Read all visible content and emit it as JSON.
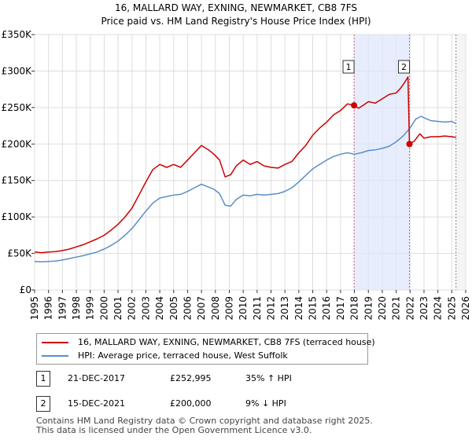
{
  "title_line1": "16, MALLARD WAY, EXNING, NEWMARKET, CB8 7FS",
  "title_line2": "Price paid vs. HM Land Registry's House Price Index (HPI)",
  "chart_data": {
    "type": "line",
    "title": "16, MALLARD WAY, EXNING, NEWMARKET, CB8 7FS — Price paid vs. HM Land Registry's House Price Index (HPI)",
    "xlim": [
      1995,
      2026
    ],
    "ylim": [
      0,
      350000
    ],
    "xticks": [
      1995,
      1996,
      1997,
      1998,
      1999,
      2000,
      2001,
      2002,
      2003,
      2004,
      2005,
      2006,
      2007,
      2008,
      2009,
      2010,
      2011,
      2012,
      2013,
      2014,
      2015,
      2016,
      2017,
      2018,
      2019,
      2020,
      2021,
      2022,
      2023,
      2024,
      2025,
      2026
    ],
    "yticks": [
      {
        "value": 0,
        "label": "£0"
      },
      {
        "value": 50000,
        "label": "£50K"
      },
      {
        "value": 100000,
        "label": "£100K"
      },
      {
        "value": 150000,
        "label": "£150K"
      },
      {
        "value": 200000,
        "label": "£200K"
      },
      {
        "value": 250000,
        "label": "£250K"
      },
      {
        "value": 300000,
        "label": "£300K"
      },
      {
        "value": 350000,
        "label": "£350K"
      }
    ],
    "grid": true,
    "series": [
      {
        "name": "16, MALLARD WAY, EXNING, NEWMARKET, CB8 7FS (terraced house)",
        "color": "#cc0000",
        "x": [
          1995.0,
          1995.5,
          1996.0,
          1996.5,
          1997.0,
          1997.5,
          1998.0,
          1998.5,
          1999.0,
          1999.5,
          2000.0,
          2000.5,
          2001.0,
          2001.5,
          2002.0,
          2002.5,
          2003.0,
          2003.5,
          2004.0,
          2004.5,
          2005.0,
          2005.5,
          2006.0,
          2006.5,
          2007.0,
          2007.5,
          2007.9,
          2008.3,
          2008.7,
          2009.1,
          2009.5,
          2010.0,
          2010.5,
          2011.0,
          2011.5,
          2012.0,
          2012.5,
          2013.0,
          2013.5,
          2014.0,
          2014.5,
          2015.0,
          2015.5,
          2016.0,
          2016.5,
          2017.0,
          2017.5,
          2017.97,
          2018.3,
          2018.7,
          2019.0,
          2019.5,
          2020.0,
          2020.5,
          2021.0,
          2021.3,
          2021.6,
          2021.85,
          2021.955,
          2022.3,
          2022.7,
          2023.0,
          2023.5,
          2024.0,
          2024.5,
          2025.0,
          2025.3
        ],
        "y": [
          52000,
          51000,
          52000,
          52500,
          54000,
          56000,
          59000,
          62000,
          66000,
          70000,
          75000,
          82000,
          90000,
          100000,
          112000,
          130000,
          148000,
          165000,
          172000,
          168000,
          172000,
          168000,
          178000,
          188000,
          198000,
          192000,
          186000,
          178000,
          155000,
          158000,
          170000,
          178000,
          172000,
          176000,
          170000,
          168000,
          167000,
          172000,
          176000,
          188000,
          198000,
          212000,
          222000,
          230000,
          240000,
          246000,
          255000,
          252995,
          249000,
          254000,
          258000,
          256000,
          262000,
          268000,
          270000,
          276000,
          284000,
          292000,
          200000,
          204000,
          214000,
          208000,
          210000,
          210000,
          211000,
          210000,
          209000
        ]
      },
      {
        "name": "HPI: Average price, terraced house, West Suffolk",
        "color": "#5b8ec9",
        "x": [
          1995.0,
          1995.5,
          1996.0,
          1996.5,
          1997.0,
          1997.5,
          1998.0,
          1998.5,
          1999.0,
          1999.5,
          2000.0,
          2000.5,
          2001.0,
          2001.5,
          2002.0,
          2002.5,
          2003.0,
          2003.5,
          2004.0,
          2004.5,
          2005.0,
          2005.5,
          2006.0,
          2006.5,
          2007.0,
          2007.5,
          2007.9,
          2008.3,
          2008.7,
          2009.1,
          2009.5,
          2010.0,
          2010.5,
          2011.0,
          2011.5,
          2012.0,
          2012.5,
          2013.0,
          2013.5,
          2014.0,
          2014.5,
          2015.0,
          2015.5,
          2016.0,
          2016.5,
          2017.0,
          2017.5,
          2018.0,
          2018.5,
          2019.0,
          2019.5,
          2020.0,
          2020.5,
          2021.0,
          2021.5,
          2022.0,
          2022.4,
          2022.8,
          2023.0,
          2023.5,
          2024.0,
          2024.5,
          2025.0,
          2025.3
        ],
        "y": [
          39000,
          38500,
          39000,
          39500,
          41000,
          43000,
          45000,
          47000,
          49500,
          52000,
          56000,
          61000,
          67000,
          75000,
          84000,
          96000,
          108000,
          119000,
          126000,
          128000,
          130000,
          131000,
          135000,
          140000,
          145000,
          141000,
          138000,
          132000,
          116000,
          115000,
          124000,
          130000,
          129000,
          131000,
          130000,
          131000,
          132000,
          135000,
          140000,
          148000,
          157000,
          166000,
          172000,
          178000,
          183000,
          186000,
          188000,
          186000,
          188000,
          191000,
          192000,
          194000,
          197000,
          203000,
          211000,
          222000,
          234000,
          238000,
          236000,
          232000,
          231000,
          230000,
          231000,
          228000
        ]
      }
    ],
    "transactions": [
      {
        "id": "1",
        "x": 2017.97,
        "y": 252995,
        "date": "21-DEC-2017",
        "price": "£252,995",
        "hpi": "35% ↑ HPI"
      },
      {
        "id": "2",
        "x": 2021.955,
        "y": 200000,
        "date": "15-DEC-2021",
        "price": "£200,000",
        "hpi": "9% ↓ HPI"
      }
    ],
    "highlight_range": [
      2017.97,
      2021.955
    ],
    "forecast_start": 2025.3
  },
  "legend": {
    "property_label": "16, MALLARD WAY, EXNING, NEWMARKET, CB8 7FS (terraced house)",
    "hpi_label": "HPI: Average price, terraced house, West Suffolk"
  },
  "footer": {
    "line1": "Contains HM Land Registry data © Crown copyright and database right 2025.",
    "line2": "This data is licensed under the Open Government Licence v3.0."
  }
}
